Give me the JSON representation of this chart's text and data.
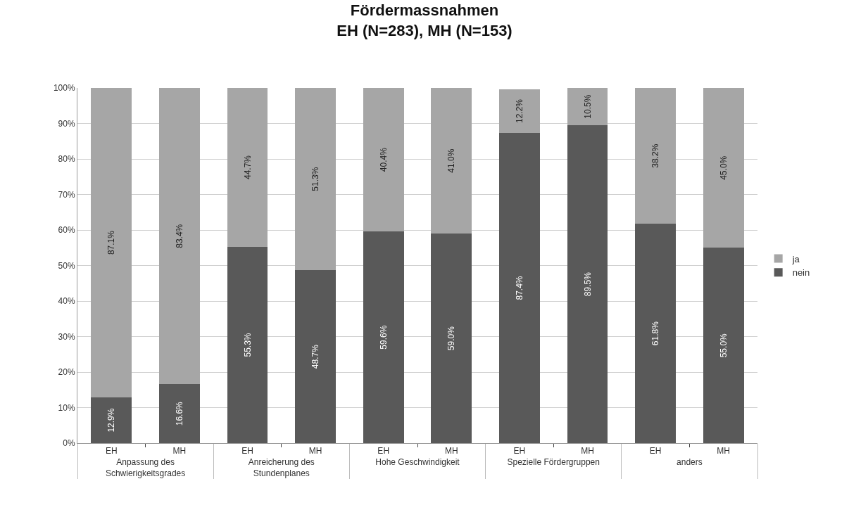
{
  "chart_data": {
    "type": "bar",
    "title": "Fördermassnahmen\nEH (N=283), MH (N=153)",
    "categories": [
      "EH",
      "MH",
      "EH",
      "MH",
      "EH",
      "MH",
      "EH",
      "MH",
      "EH",
      "MH"
    ],
    "annotations": [
      "Anpassung des\nSchwierigkeitsgrades",
      "Anreicherung des\nStundenplanes",
      "Hohe Geschwindigkeit",
      "Spezielle Fördergruppen",
      "anders"
    ],
    "series": [
      {
        "name": "nein",
        "color": "#595959",
        "values": [
          12.9,
          16.6,
          55.3,
          48.7,
          59.6,
          59.0,
          87.4,
          89.5,
          61.8,
          55.0
        ],
        "value_labels": [
          "12.9%",
          "16.6%",
          "55.3%",
          "48.7%",
          "59.6%",
          "59.0%",
          "87.4%",
          "89.5%",
          "61.8%",
          "55.0%"
        ]
      },
      {
        "name": "ja",
        "color": "#a6a6a6",
        "values": [
          87.1,
          83.4,
          44.7,
          51.3,
          40.4,
          41.0,
          12.2,
          10.5,
          38.2,
          45.0
        ],
        "value_labels": [
          "87.1%",
          "83.4%",
          "44.7%",
          "51.3%",
          "40.4%",
          "41.0%",
          "12.2%",
          "10.5%",
          "38.2%",
          "45.0%"
        ]
      }
    ],
    "stacked": true,
    "ylim": [
      0,
      100
    ],
    "yticks": [
      {
        "value": 0,
        "label": "0%"
      },
      {
        "value": 10,
        "label": "10%"
      },
      {
        "value": 20,
        "label": "20%"
      },
      {
        "value": 30,
        "label": "30%"
      },
      {
        "value": 40,
        "label": "40%"
      },
      {
        "value": 50,
        "label": "50%"
      },
      {
        "value": 60,
        "label": "60%"
      },
      {
        "value": 70,
        "label": "70%"
      },
      {
        "value": 80,
        "label": "80%"
      },
      {
        "value": 90,
        "label": "90%"
      },
      {
        "value": 100,
        "label": "100%"
      }
    ],
    "grid": "y",
    "legend": "right"
  }
}
